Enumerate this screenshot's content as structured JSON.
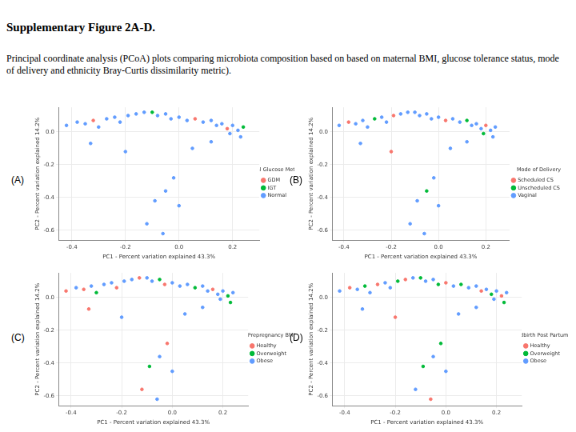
{
  "title": "Supplementary Figure 2A-D.",
  "caption": "Principal coordinate analysis (PCoA) plots comparing microbiota composition based on based on maternal BMI, glucose tolerance status, mode of delivery and ethnicity Bray-Curtis dissimilarity metric).",
  "chart_data": [
    {
      "type": "scatter",
      "panel_label": "(A)",
      "xlabel": "PC1 - Percent variation explained 43.3%",
      "ylabel": "PC2 - Percent variation explained 14.2%",
      "legend_title": "Maternal Glucose Metabolism",
      "legend": "right",
      "grid": true,
      "xlim": [
        -0.45,
        0.3
      ],
      "ylim": [
        -0.66,
        0.15
      ],
      "xticks": [
        -0.4,
        -0.2,
        {
          "value": 0,
          "label": "0.0"
        },
        0.2
      ],
      "yticks": [
        -0.6,
        -0.4,
        -0.2,
        {
          "value": 0,
          "label": "0.0"
        }
      ],
      "series": [
        {
          "name": "GDM",
          "color": "#F8766D",
          "x": [
            -0.32,
            0.06,
            0.18
          ],
          "values": [
            0.07,
            0.08,
            0.02
          ]
        },
        {
          "name": "IGT",
          "color": "#00BA38",
          "x": [
            -0.1,
            0.24
          ],
          "values": [
            0.12,
            0.03
          ]
        },
        {
          "name": "Normal",
          "color": "#619CFF",
          "x": [
            -0.42,
            -0.38,
            -0.35,
            -0.3,
            -0.27,
            -0.24,
            -0.22,
            -0.19,
            -0.16,
            -0.13,
            -0.08,
            -0.05,
            -0.03,
            0.0,
            0.03,
            0.09,
            0.12,
            0.14,
            0.16,
            0.2,
            0.22,
            0.19,
            0.23,
            -0.33,
            -0.2,
            0.05,
            0.12,
            -0.02,
            -0.05,
            -0.09,
            -0.12,
            0.0,
            -0.06
          ],
          "values": [
            0.04,
            0.06,
            0.05,
            0.03,
            0.08,
            0.09,
            0.06,
            0.1,
            0.11,
            0.12,
            0.1,
            0.11,
            0.08,
            0.09,
            0.07,
            0.06,
            0.07,
            0.04,
            0.05,
            0.04,
            0.01,
            -0.01,
            -0.03,
            -0.07,
            -0.12,
            -0.1,
            -0.06,
            -0.28,
            -0.36,
            -0.42,
            -0.56,
            -0.45,
            -0.62
          ]
        }
      ]
    },
    {
      "type": "scatter",
      "panel_label": "(B)",
      "xlabel": "PC1 - Percent variation explained 43.3%",
      "ylabel": "PC2 - Percent variation explained 14.2%",
      "legend_title": "Mode of Delivery",
      "legend": "right",
      "grid": true,
      "xlim": [
        -0.45,
        0.3
      ],
      "ylim": [
        -0.66,
        0.15
      ],
      "xticks": [
        -0.4,
        -0.2,
        {
          "value": 0,
          "label": "0.0"
        },
        0.2
      ],
      "yticks": [
        -0.6,
        -0.4,
        -0.2,
        {
          "value": 0,
          "label": "0.0"
        }
      ],
      "series": [
        {
          "name": "Scheduled CS",
          "color": "#F8766D",
          "x": [
            -0.38,
            -0.19,
            0.03,
            0.2,
            -0.2
          ],
          "values": [
            0.06,
            0.1,
            0.07,
            0.04,
            -0.12
          ]
        },
        {
          "name": "Unscheduled CS",
          "color": "#00BA38",
          "x": [
            -0.27,
            0.12,
            0.19,
            -0.05
          ],
          "values": [
            0.08,
            0.07,
            -0.01,
            -0.36
          ]
        },
        {
          "name": "Vaginal",
          "color": "#619CFF",
          "x": [
            -0.42,
            -0.35,
            -0.32,
            -0.3,
            -0.24,
            -0.22,
            -0.16,
            -0.13,
            -0.1,
            -0.08,
            -0.05,
            -0.03,
            0.0,
            0.06,
            0.09,
            0.14,
            0.16,
            0.18,
            0.22,
            0.24,
            0.23,
            -0.33,
            0.05,
            0.12,
            -0.02,
            -0.09,
            -0.12,
            0.0,
            -0.06
          ],
          "values": [
            0.04,
            0.05,
            0.07,
            0.03,
            0.09,
            0.06,
            0.11,
            0.12,
            0.12,
            0.1,
            0.11,
            0.08,
            0.09,
            0.08,
            0.06,
            0.04,
            0.05,
            0.02,
            0.01,
            0.03,
            -0.03,
            -0.07,
            -0.1,
            -0.06,
            -0.28,
            -0.42,
            -0.56,
            -0.45,
            -0.62
          ]
        }
      ]
    },
    {
      "type": "scatter",
      "panel_label": "(C)",
      "xlabel": "PC1 - Percent variation explained 43.3%",
      "ylabel": "PC2 - Percent variation explained 14.2%",
      "legend_title": "Prepregnancy BMI",
      "legend": "right",
      "grid": true,
      "xlim": [
        -0.45,
        0.3
      ],
      "ylim": [
        -0.66,
        0.15
      ],
      "xticks": [
        -0.4,
        -0.2,
        {
          "value": 0,
          "label": "0.0"
        },
        0.2
      ],
      "yticks": [
        -0.6,
        -0.4,
        -0.2,
        {
          "value": 0,
          "label": "0.0"
        }
      ],
      "series": [
        {
          "name": "Healthy",
          "color": "#F8766D",
          "x": [
            -0.42,
            -0.35,
            -0.22,
            -0.13,
            -0.03,
            0.16,
            -0.33,
            -0.02,
            -0.12
          ],
          "values": [
            0.04,
            0.05,
            0.06,
            0.12,
            0.08,
            0.05,
            -0.07,
            -0.28,
            -0.56
          ]
        },
        {
          "name": "Overweight",
          "color": "#00BA38",
          "x": [
            -0.3,
            -0.05,
            0.09,
            0.22,
            0.23,
            -0.09
          ],
          "values": [
            0.03,
            0.11,
            0.06,
            0.01,
            -0.03,
            -0.42
          ]
        },
        {
          "name": "Obese",
          "color": "#619CFF",
          "x": [
            -0.38,
            -0.32,
            -0.27,
            -0.24,
            -0.19,
            -0.16,
            -0.1,
            -0.08,
            0.0,
            0.03,
            0.06,
            0.12,
            0.14,
            0.18,
            0.2,
            0.24,
            0.19,
            -0.2,
            0.05,
            0.12,
            -0.05,
            0.0,
            -0.06
          ],
          "values": [
            0.06,
            0.07,
            0.08,
            0.09,
            0.1,
            0.11,
            0.12,
            0.1,
            0.09,
            0.07,
            0.08,
            0.07,
            0.04,
            0.02,
            0.04,
            0.03,
            -0.01,
            -0.12,
            -0.1,
            -0.06,
            -0.36,
            -0.45,
            -0.62
          ]
        }
      ]
    },
    {
      "type": "scatter",
      "panel_label": "(D)",
      "xlabel": "PC1 - Percent variation explained 43.3%",
      "ylabel": "PC2 - Percent variation explained 14.2%",
      "legend_title": "Childbirth Post Partum BMI",
      "legend": "right",
      "grid": true,
      "xlim": [
        -0.45,
        0.3
      ],
      "ylim": [
        -0.66,
        0.15
      ],
      "xticks": [
        -0.4,
        -0.2,
        {
          "value": 0,
          "label": "0.0"
        },
        0.2
      ],
      "yticks": [
        -0.6,
        -0.4,
        -0.2,
        {
          "value": 0,
          "label": "0.0"
        }
      ],
      "series": [
        {
          "name": "Healthy",
          "color": "#F8766D",
          "x": [
            -0.38,
            -0.27,
            -0.16,
            0.0,
            0.14,
            0.22,
            -0.2,
            -0.06
          ],
          "values": [
            0.06,
            0.08,
            0.11,
            0.09,
            0.04,
            0.01,
            -0.12,
            -0.62
          ]
        },
        {
          "name": "Overweight",
          "color": "#00BA38",
          "x": [
            -0.32,
            -0.19,
            -0.1,
            -0.03,
            0.06,
            0.18,
            0.23,
            -0.02,
            -0.09
          ],
          "values": [
            0.07,
            0.1,
            0.12,
            0.08,
            0.08,
            0.02,
            -0.03,
            -0.28,
            -0.42
          ]
        },
        {
          "name": "Obese",
          "color": "#619CFF",
          "x": [
            -0.42,
            -0.35,
            -0.3,
            -0.24,
            -0.22,
            -0.13,
            -0.08,
            -0.05,
            0.03,
            0.09,
            0.12,
            0.16,
            0.2,
            0.24,
            0.19,
            -0.33,
            0.05,
            0.12,
            -0.05,
            -0.12,
            0.0
          ],
          "values": [
            0.04,
            0.05,
            0.03,
            0.09,
            0.06,
            0.12,
            0.1,
            0.11,
            0.07,
            0.06,
            0.07,
            0.05,
            0.04,
            0.03,
            -0.01,
            -0.07,
            -0.1,
            -0.06,
            -0.36,
            -0.56,
            -0.45
          ]
        }
      ]
    }
  ]
}
